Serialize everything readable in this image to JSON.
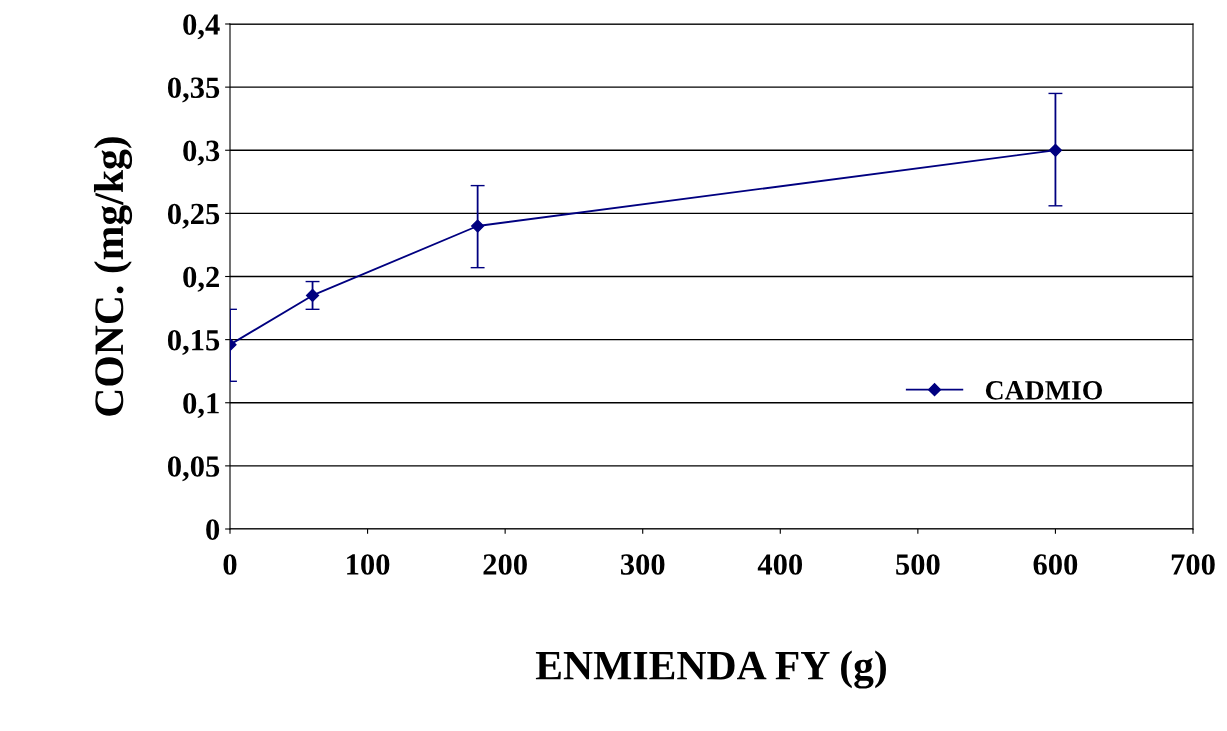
{
  "chart_data": {
    "type": "line",
    "xlabel": "ENMIENDA FY (g)",
    "ylabel": "CONC. (mg/kg)",
    "x": [
      0,
      60,
      180,
      600
    ],
    "series": [
      {
        "name": "CADMIO",
        "color": "#000080",
        "values": [
          0.146,
          0.185,
          0.24,
          0.3
        ],
        "errors": [
          [
            0.117,
            0.174
          ],
          [
            0.174,
            0.196
          ],
          [
            0.207,
            0.272
          ],
          [
            0.256,
            0.345
          ]
        ]
      }
    ],
    "xlim": [
      0,
      700
    ],
    "xticks": [
      0,
      100,
      200,
      300,
      400,
      500,
      600,
      700
    ],
    "ylim": [
      0,
      0.4
    ],
    "yticks": [
      {
        "value": 0,
        "label": "0"
      },
      {
        "value": 0.05,
        "label": "0,05"
      },
      {
        "value": 0.1,
        "label": "0,1"
      },
      {
        "value": 0.15,
        "label": "0,15"
      },
      {
        "value": 0.2,
        "label": "0,2"
      },
      {
        "value": 0.25,
        "label": "0,25"
      },
      {
        "value": 0.3,
        "label": "0,3"
      },
      {
        "value": 0.35,
        "label": "0,35"
      },
      {
        "value": 0.4,
        "label": "0,4"
      }
    ],
    "grid": "y",
    "legend": "right",
    "marker": "diamond",
    "line_style": "solid"
  }
}
